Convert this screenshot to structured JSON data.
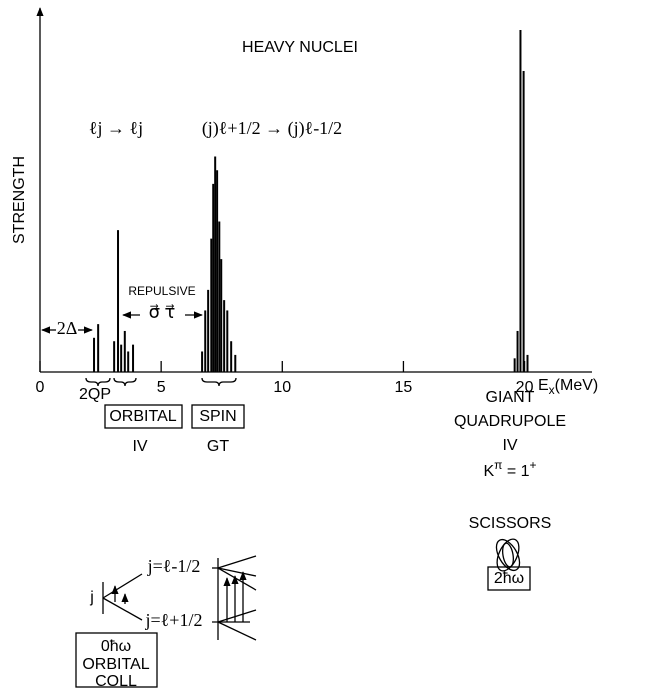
{
  "chart_data": {
    "type": "bar",
    "title": "HEAVY NUCLEI",
    "ylabel": "STRENGTH",
    "xlabel": [
      "E",
      "x",
      "(MeV)"
    ],
    "color": "#000000",
    "xlim": [
      0,
      22.7
    ],
    "ylim": [
      0,
      100
    ],
    "xticks": [
      0,
      5,
      10,
      15,
      20
    ],
    "x": [
      2.23,
      2.4,
      3.06,
      3.22,
      3.35,
      3.5,
      3.64,
      3.84,
      6.69,
      6.82,
      6.94,
      7.07,
      7.15,
      7.23,
      7.31,
      7.4,
      7.48,
      7.6,
      7.73,
      7.89,
      8.06,
      19.59,
      19.71,
      19.83,
      19.96,
      20.12
    ],
    "values": [
      10,
      14,
      9,
      41.5,
      8,
      12,
      6,
      8,
      6,
      18,
      24,
      39,
      55,
      63,
      59,
      44,
      33,
      21,
      18,
      9,
      5,
      4,
      12,
      100,
      88,
      5
    ],
    "annotations": {
      "transition_orbital": "ℓj → ℓj",
      "transition_spin": "(j)ℓ+1/2 → (j)ℓ-1/2",
      "pairing_gap": "2Δ",
      "repulsive": "REPULSIVE",
      "interaction": "σ⃗ τ⃗",
      "two_qp": "2QP",
      "orbital_box": "ORBITAL",
      "spin_box": "SPIN",
      "orbital_iv": "IV",
      "spin_gt": "GT",
      "giant": [
        "GIANT",
        "QUADRUPOLE",
        "IV"
      ],
      "k_pi": [
        "K",
        "π",
        " = 1",
        "+"
      ],
      "scissors": "SCISSORS",
      "scissors_box": "2ħω",
      "level_j": "j",
      "level_upper": "j=ℓ-1/2",
      "level_lower": "j=ℓ+1/2",
      "coll_box": [
        "0ħω",
        "ORBITAL",
        "COLL"
      ]
    }
  }
}
